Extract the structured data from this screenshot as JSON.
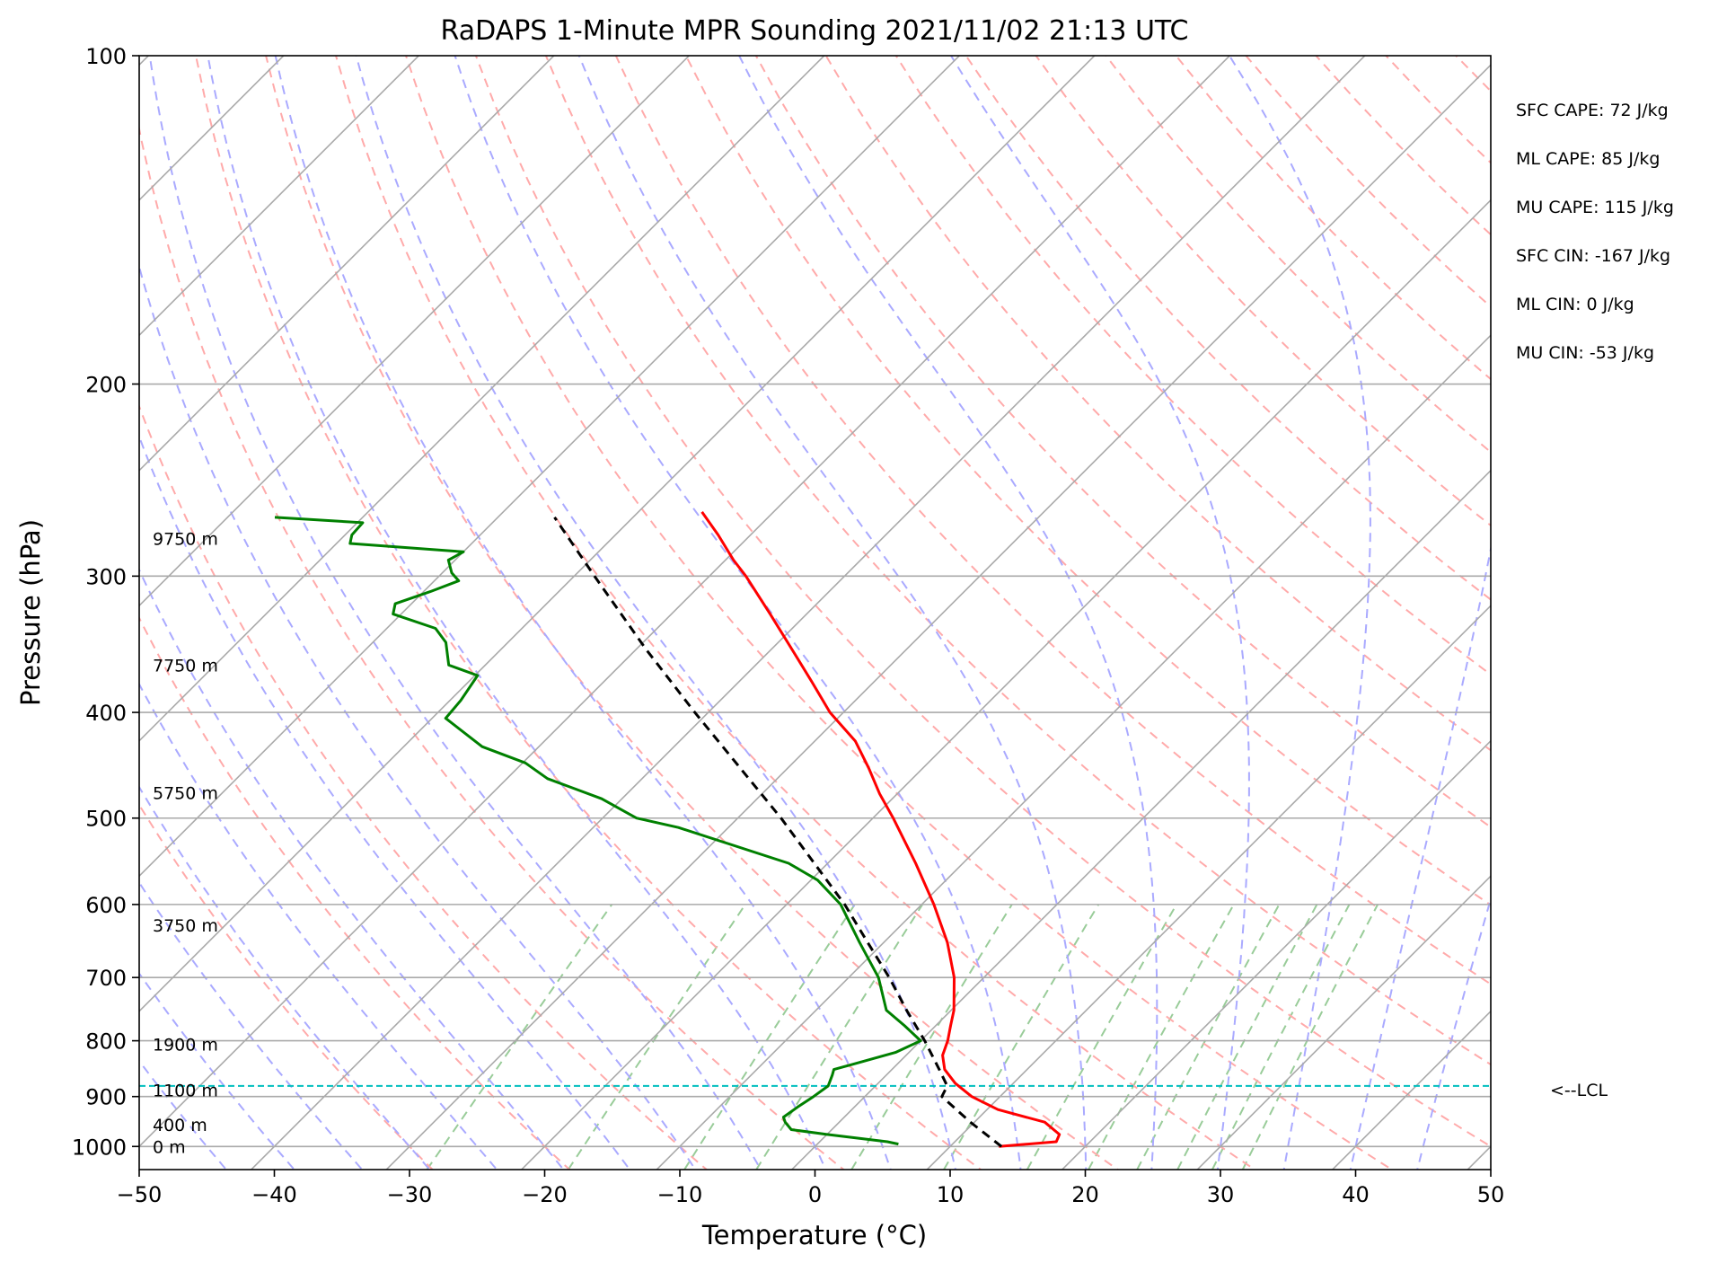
{
  "chart_data": {
    "type": "line",
    "title": "RaDAPS 1-Minute MPR Sounding 2021/11/02 21:13 UTC",
    "xlabel": "Temperature (°C)",
    "ylabel": "Pressure (hPa)",
    "xlim": [
      -50,
      50
    ],
    "ylim": [
      1050,
      100
    ],
    "y_scale": "log",
    "grid": true,
    "x_ticks": [
      -50,
      -40,
      -30,
      -20,
      -10,
      0,
      10,
      20,
      30,
      40,
      50
    ],
    "x_tick_labels": [
      "−50",
      "−40",
      "−30",
      "−20",
      "−10",
      "0",
      "10",
      "20",
      "30",
      "40",
      "50"
    ],
    "y_ticks": [
      100,
      200,
      300,
      400,
      500,
      600,
      700,
      800,
      900,
      1000
    ],
    "y_tick_labels": [
      "100",
      "200",
      "300",
      "400",
      "500",
      "600",
      "700",
      "800",
      "900",
      "1000"
    ],
    "series": [
      {
        "key": "temperature",
        "color": "#ff0000",
        "points": [
          [
            1000,
            13.6
          ],
          [
            990,
            17.5
          ],
          [
            975,
            17.2
          ],
          [
            950,
            15.2
          ],
          [
            925,
            10.8
          ],
          [
            900,
            7.9
          ],
          [
            875,
            5.7
          ],
          [
            850,
            3.9
          ],
          [
            825,
            2.7
          ],
          [
            800,
            2.0
          ],
          [
            775,
            1.1
          ],
          [
            750,
            0.2
          ],
          [
            700,
            -2.2
          ],
          [
            650,
            -5.3
          ],
          [
            600,
            -9.1
          ],
          [
            550,
            -13.5
          ],
          [
            500,
            -18.5
          ],
          [
            475,
            -21.3
          ],
          [
            450,
            -24.0
          ],
          [
            425,
            -27.0
          ],
          [
            400,
            -31.0
          ],
          [
            375,
            -34.6
          ],
          [
            350,
            -38.5
          ],
          [
            325,
            -42.7
          ],
          [
            300,
            -47.3
          ],
          [
            290,
            -49.4
          ],
          [
            275,
            -52.4
          ],
          [
            262,
            -55.3
          ]
        ]
      },
      {
        "key": "dewpoint",
        "color": "#008000",
        "points": [
          [
            995,
            6.0
          ],
          [
            990,
            5.0
          ],
          [
            975,
            0.0
          ],
          [
            965,
            -3.0
          ],
          [
            950,
            -4.0
          ],
          [
            940,
            -4.5
          ],
          [
            920,
            -4.2
          ],
          [
            900,
            -3.8
          ],
          [
            880,
            -3.5
          ],
          [
            860,
            -4.0
          ],
          [
            850,
            -4.3
          ],
          [
            840,
            -3.2
          ],
          [
            820,
            -1.0
          ],
          [
            800,
            0.0
          ],
          [
            775,
            -2.3
          ],
          [
            750,
            -4.8
          ],
          [
            700,
            -7.8
          ],
          [
            650,
            -11.8
          ],
          [
            600,
            -16.0
          ],
          [
            570,
            -19.5
          ],
          [
            550,
            -22.9
          ],
          [
            510,
            -33.7
          ],
          [
            500,
            -37.5
          ],
          [
            480,
            -41.5
          ],
          [
            460,
            -47.0
          ],
          [
            445,
            -49.8
          ],
          [
            430,
            -54.2
          ],
          [
            405,
            -59.0
          ],
          [
            390,
            -59.2
          ],
          [
            370,
            -59.8
          ],
          [
            362,
            -62.7
          ],
          [
            345,
            -64.6
          ],
          [
            335,
            -66.4
          ],
          [
            325,
            -70.6
          ],
          [
            318,
            -71.2
          ],
          [
            310,
            -69.5
          ],
          [
            303,
            -68.2
          ],
          [
            298,
            -69.3
          ],
          [
            290,
            -70.5
          ],
          [
            285,
            -70.0
          ],
          [
            280,
            -79.0
          ],
          [
            275,
            -79.5
          ],
          [
            268,
            -79.6
          ],
          [
            265,
            -86.5
          ]
        ]
      },
      {
        "key": "parcel",
        "color": "#000000",
        "dashed": true,
        "points": [
          [
            1000,
            13.8
          ],
          [
            950,
            9.7
          ],
          [
            900,
            5.7
          ],
          [
            880,
            5.3
          ],
          [
            850,
            3.5
          ],
          [
            800,
            0.3
          ],
          [
            750,
            -3.3
          ],
          [
            700,
            -7.0
          ],
          [
            650,
            -11.2
          ],
          [
            600,
            -15.7
          ],
          [
            550,
            -21.0
          ],
          [
            500,
            -26.8
          ],
          [
            450,
            -33.5
          ],
          [
            400,
            -41.0
          ],
          [
            350,
            -49.3
          ],
          [
            300,
            -58.5
          ],
          [
            265,
            -65.8
          ]
        ]
      }
    ],
    "lcl": {
      "pressure": 880,
      "label": "<--LCL",
      "color": "#00bfbf"
    },
    "height_labels": [
      {
        "pressure": 1000,
        "label": "0 m"
      },
      {
        "pressure": 955,
        "label": "400 m"
      },
      {
        "pressure": 888,
        "label": "1100 m"
      },
      {
        "pressure": 806,
        "label": "1900 m"
      },
      {
        "pressure": 627,
        "label": "3750 m"
      },
      {
        "pressure": 474,
        "label": "5750 m"
      },
      {
        "pressure": 362,
        "label": "7750 m"
      },
      {
        "pressure": 277,
        "label": "9750 m"
      }
    ],
    "stats": [
      {
        "label": "SFC CAPE: 72 J/kg"
      },
      {
        "label": "ML CAPE: 85 J/kg"
      },
      {
        "label": "MU CAPE: 115 J/kg"
      },
      {
        "label": "SFC CIN: -167 J/kg"
      },
      {
        "label": "ML CIN: 0 J/kg"
      },
      {
        "label": "MU CIN: -53 J/kg"
      }
    ],
    "background_lines": {
      "isotherm_color": "#aaaaaa",
      "dry_adiabat_color": "#ffaaaa",
      "moist_adiabat_color": "#aaaaff",
      "mixing_ratio_color": "#99cc99"
    }
  }
}
